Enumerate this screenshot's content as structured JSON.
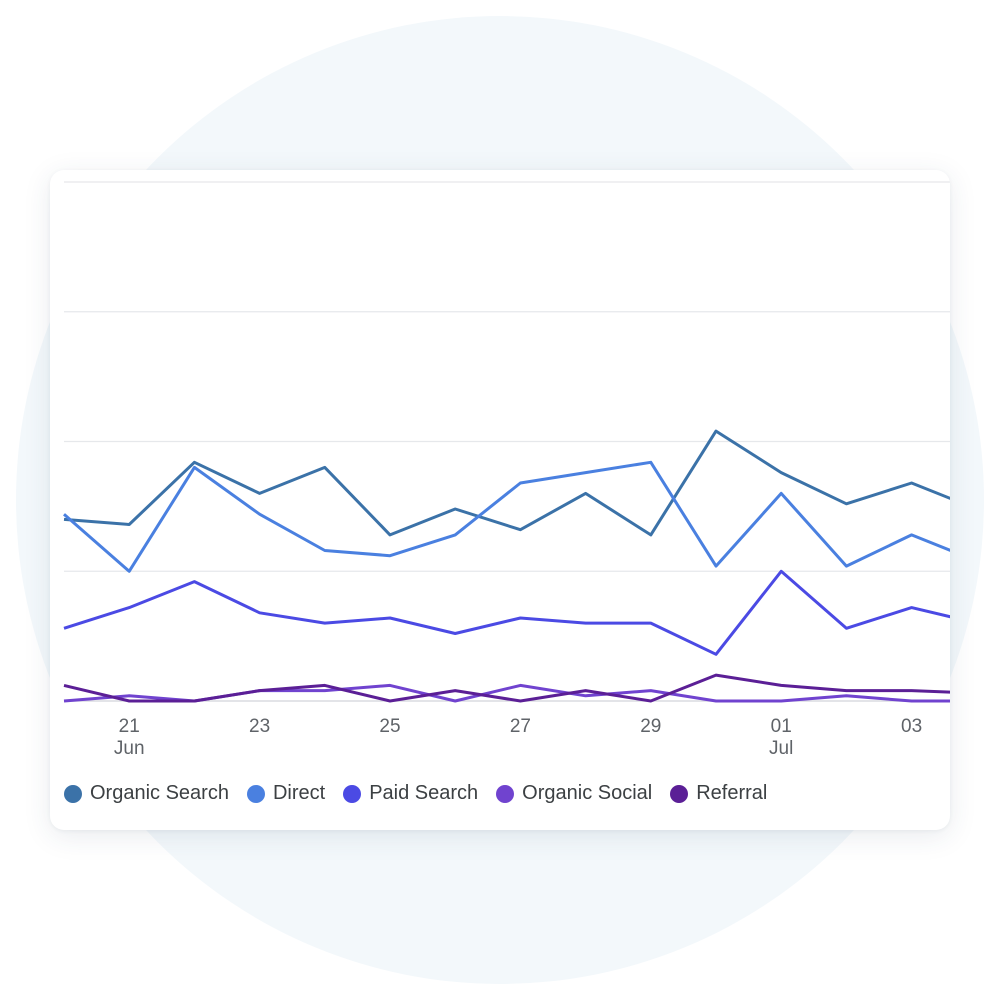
{
  "chart_data": {
    "type": "line",
    "x": [
      "Jun 20",
      "Jun 21",
      "Jun 22",
      "Jun 23",
      "Jun 24",
      "Jun 25",
      "Jun 26",
      "Jun 27",
      "Jun 28",
      "Jun 29",
      "Jun 30",
      "Jul 01",
      "Jul 02",
      "Jul 03",
      "Jul 04"
    ],
    "tick_labels": [
      {
        "day": "21",
        "month": "Jun"
      },
      {
        "day": "23",
        "month": ""
      },
      {
        "day": "25",
        "month": ""
      },
      {
        "day": "27",
        "month": ""
      },
      {
        "day": "29",
        "month": ""
      },
      {
        "day": "01",
        "month": "Jul"
      },
      {
        "day": "03",
        "month": ""
      }
    ],
    "tick_indices": [
      1,
      3,
      5,
      7,
      9,
      11,
      13
    ],
    "ylim": [
      0,
      100
    ],
    "grid": true,
    "legend_position": "bottom-left",
    "series": [
      {
        "name": "Organic Search",
        "color": "#3b72a8",
        "values": [
          35,
          34,
          46,
          40,
          45,
          32,
          37,
          33,
          40,
          32,
          52,
          44,
          38,
          42,
          37
        ]
      },
      {
        "name": "Direct",
        "color": "#4a80e0",
        "values": [
          36,
          25,
          45,
          36,
          29,
          28,
          32,
          42,
          44,
          46,
          26,
          40,
          26,
          32,
          27
        ]
      },
      {
        "name": "Paid Search",
        "color": "#4b4ae4",
        "values": [
          14,
          18,
          23,
          17,
          15,
          16,
          13,
          16,
          15,
          15,
          9,
          25,
          14,
          18,
          15
        ]
      },
      {
        "name": "Organic Social",
        "color": "#7043cf",
        "values": [
          0,
          1,
          0,
          2,
          2,
          3,
          0,
          3,
          1,
          2,
          0,
          0,
          1,
          0,
          0
        ]
      },
      {
        "name": "Referral",
        "color": "#5b1f96",
        "values": [
          3,
          0,
          0,
          2,
          3,
          0,
          2,
          0,
          2,
          0,
          5,
          3,
          2,
          2,
          1.5
        ]
      }
    ]
  }
}
